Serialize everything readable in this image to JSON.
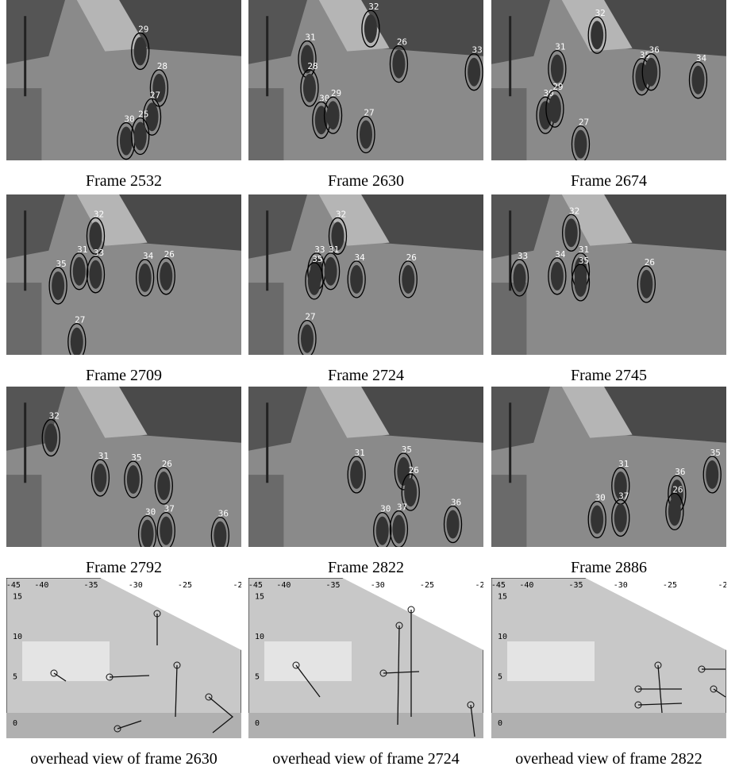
{
  "panels": [
    {
      "caption": "Frame 2532",
      "tracks": [
        "29",
        "28",
        "27",
        "30",
        "25"
      ]
    },
    {
      "caption": "Frame 2630",
      "tracks": [
        "32",
        "31",
        "26",
        "33",
        "28",
        "30",
        "29",
        "27"
      ]
    },
    {
      "caption": "Frame 2674",
      "tracks": [
        "32",
        "31",
        "35",
        "36",
        "34",
        "30",
        "29",
        "27"
      ]
    },
    {
      "caption": "Frame 2709",
      "tracks": [
        "32",
        "31",
        "33",
        "35",
        "34",
        "26",
        "27"
      ]
    },
    {
      "caption": "Frame 2724",
      "tracks": [
        "32",
        "33",
        "31",
        "35",
        "34",
        "26",
        "27"
      ]
    },
    {
      "caption": "Frame 2745",
      "tracks": [
        "32",
        "33",
        "34",
        "31",
        "35",
        "26"
      ]
    },
    {
      "caption": "Frame 2792",
      "tracks": [
        "32",
        "31",
        "35",
        "26",
        "30",
        "37",
        "36"
      ]
    },
    {
      "caption": "Frame 2822",
      "tracks": [
        "31",
        "35",
        "26",
        "30",
        "37",
        "36"
      ]
    },
    {
      "caption": "Frame 2886",
      "tracks": [
        "35",
        "31",
        "36",
        "30",
        "37",
        "26"
      ]
    }
  ],
  "overhead": {
    "x_ticks": [
      "-45",
      "-40",
      "-35",
      "-30",
      "-25",
      "-2"
    ],
    "y_ticks": [
      "15",
      "10",
      "5",
      "0"
    ],
    "panels": [
      {
        "caption": "overhead view of frame 2630"
      },
      {
        "caption": "overhead view of frame 2724"
      },
      {
        "caption": "overhead view of frame 2822"
      }
    ]
  }
}
